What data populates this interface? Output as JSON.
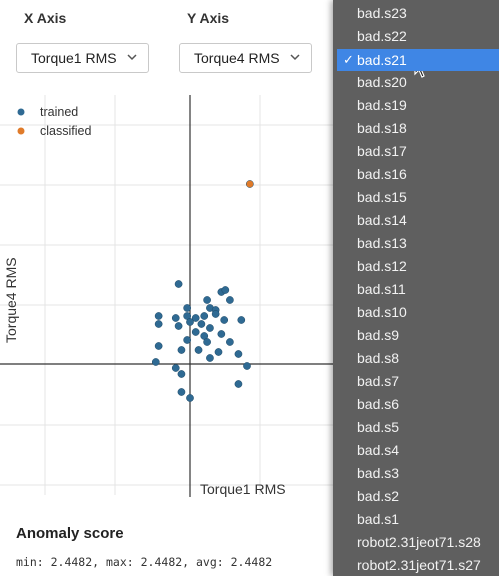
{
  "controls": {
    "x_label": "X Axis",
    "y_label": "Y Axis",
    "x_value": "Torque1 RMS",
    "y_value": "Torque4 RMS"
  },
  "chart_data": {
    "type": "scatter",
    "xlabel": "Torque1 RMS",
    "ylabel": "Torque4 RMS",
    "grid": true,
    "legend_position": "top-left",
    "series": [
      {
        "name": "trained",
        "color": "#2f6a93",
        "points": [
          [
            -0.2,
            2.0
          ],
          [
            0.55,
            1.8
          ],
          [
            0.62,
            1.85
          ],
          [
            0.3,
            1.6
          ],
          [
            0.7,
            1.6
          ],
          [
            0.35,
            1.4
          ],
          [
            -0.05,
            1.4
          ],
          [
            0.45,
            1.35
          ],
          [
            -0.55,
            1.2
          ],
          [
            -0.25,
            1.15
          ],
          [
            -0.05,
            1.2
          ],
          [
            0.1,
            1.15
          ],
          [
            0.25,
            1.2
          ],
          [
            0.45,
            1.25
          ],
          [
            0.6,
            1.1
          ],
          [
            0.9,
            1.1
          ],
          [
            -0.55,
            1.0
          ],
          [
            -0.2,
            0.95
          ],
          [
            0.0,
            1.05
          ],
          [
            0.2,
            1.0
          ],
          [
            0.35,
            0.9
          ],
          [
            0.1,
            0.8
          ],
          [
            0.25,
            0.7
          ],
          [
            0.55,
            0.75
          ],
          [
            -0.05,
            0.6
          ],
          [
            0.3,
            0.55
          ],
          [
            0.7,
            0.55
          ],
          [
            -0.55,
            0.45
          ],
          [
            -0.15,
            0.35
          ],
          [
            0.15,
            0.35
          ],
          [
            0.5,
            0.3
          ],
          [
            0.85,
            0.25
          ],
          [
            -0.6,
            0.05
          ],
          [
            0.35,
            0.15
          ],
          [
            1.0,
            -0.05
          ],
          [
            -0.25,
            -0.1
          ],
          [
            -0.15,
            -0.25
          ],
          [
            0.85,
            -0.5
          ],
          [
            -0.15,
            -0.7
          ],
          [
            0.0,
            -0.85
          ]
        ]
      },
      {
        "name": "classified",
        "color": "#e07b2a",
        "points": [
          [
            1.05,
            4.5
          ]
        ]
      }
    ]
  },
  "score": {
    "title": "Anomaly score",
    "line": "min: 2.4482, max: 2.4482, avg: 2.4482"
  },
  "dropdown": {
    "selected": "bad.s21",
    "check": "✓",
    "items": [
      "bad.s23",
      "bad.s22",
      "bad.s21",
      "bad.s20",
      "bad.s19",
      "bad.s18",
      "bad.s17",
      "bad.s16",
      "bad.s15",
      "bad.s14",
      "bad.s13",
      "bad.s12",
      "bad.s11",
      "bad.s10",
      "bad.s9",
      "bad.s8",
      "bad.s7",
      "bad.s6",
      "bad.s5",
      "bad.s4",
      "bad.s3",
      "bad.s2",
      "bad.s1",
      "robot2.31jeot71.s28",
      "robot2.31jeot71.s27"
    ]
  }
}
